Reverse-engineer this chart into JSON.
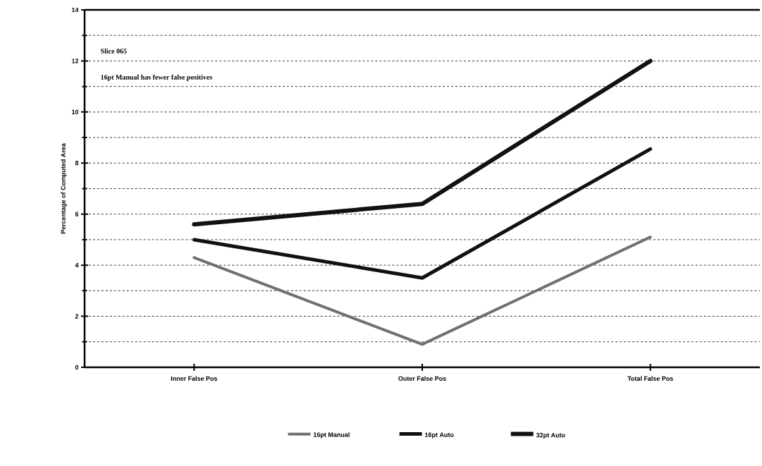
{
  "chart_data": {
    "type": "line",
    "ylabel": "Percentage of Computed Area",
    "categories": [
      "Inner False Pos",
      "Outer False Pos",
      "Total False Pos"
    ],
    "series": [
      {
        "name": "16pt Manual",
        "color": "#707070",
        "values": [
          4.3,
          0.9,
          5.1
        ]
      },
      {
        "name": "16pt Auto",
        "color": "#111111",
        "values": [
          5.0,
          3.5,
          8.55
        ]
      },
      {
        "name": "32pt Auto",
        "color": "#111111",
        "values": [
          5.6,
          6.4,
          12.0
        ]
      }
    ],
    "ylim": [
      0,
      14
    ],
    "yticks": [
      0,
      2,
      4,
      6,
      8,
      10,
      12,
      14
    ],
    "grid": "y",
    "legend": "bottom",
    "marker": "none",
    "line_style": "solid",
    "annotations": [
      "Slice 065",
      "16pt Manual has fewer false positives"
    ]
  }
}
